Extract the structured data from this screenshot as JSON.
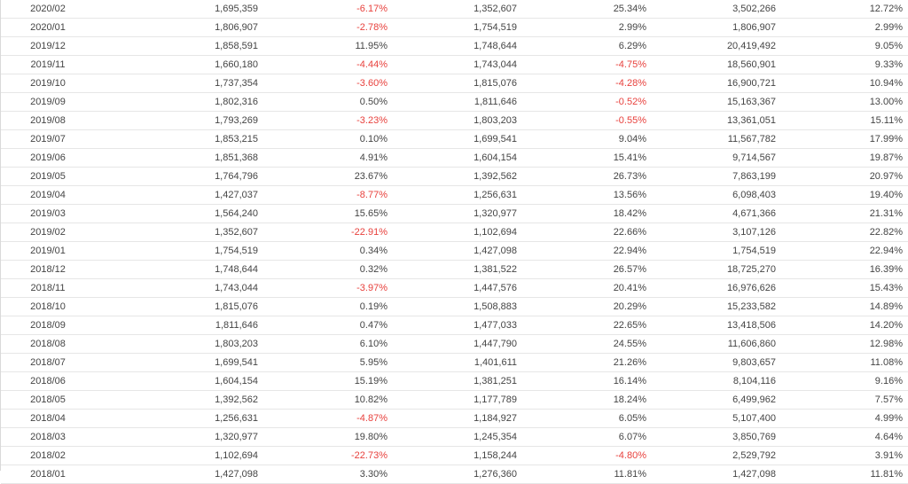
{
  "colors": {
    "negative": "#e8413d",
    "text": "#444444",
    "row_border": "#e6e6e6"
  },
  "rows": [
    [
      "2020/02",
      "1,695,359",
      "-6.17%",
      "1,352,607",
      "25.34%",
      "3,502,266",
      "12.72%"
    ],
    [
      "2020/01",
      "1,806,907",
      "-2.78%",
      "1,754,519",
      "2.99%",
      "1,806,907",
      "2.99%"
    ],
    [
      "2019/12",
      "1,858,591",
      "11.95%",
      "1,748,644",
      "6.29%",
      "20,419,492",
      "9.05%"
    ],
    [
      "2019/11",
      "1,660,180",
      "-4.44%",
      "1,743,044",
      "-4.75%",
      "18,560,901",
      "9.33%"
    ],
    [
      "2019/10",
      "1,737,354",
      "-3.60%",
      "1,815,076",
      "-4.28%",
      "16,900,721",
      "10.94%"
    ],
    [
      "2019/09",
      "1,802,316",
      "0.50%",
      "1,811,646",
      "-0.52%",
      "15,163,367",
      "13.00%"
    ],
    [
      "2019/08",
      "1,793,269",
      "-3.23%",
      "1,803,203",
      "-0.55%",
      "13,361,051",
      "15.11%"
    ],
    [
      "2019/07",
      "1,853,215",
      "0.10%",
      "1,699,541",
      "9.04%",
      "11,567,782",
      "17.99%"
    ],
    [
      "2019/06",
      "1,851,368",
      "4.91%",
      "1,604,154",
      "15.41%",
      "9,714,567",
      "19.87%"
    ],
    [
      "2019/05",
      "1,764,796",
      "23.67%",
      "1,392,562",
      "26.73%",
      "7,863,199",
      "20.97%"
    ],
    [
      "2019/04",
      "1,427,037",
      "-8.77%",
      "1,256,631",
      "13.56%",
      "6,098,403",
      "19.40%"
    ],
    [
      "2019/03",
      "1,564,240",
      "15.65%",
      "1,320,977",
      "18.42%",
      "4,671,366",
      "21.31%"
    ],
    [
      "2019/02",
      "1,352,607",
      "-22.91%",
      "1,102,694",
      "22.66%",
      "3,107,126",
      "22.82%"
    ],
    [
      "2019/01",
      "1,754,519",
      "0.34%",
      "1,427,098",
      "22.94%",
      "1,754,519",
      "22.94%"
    ],
    [
      "2018/12",
      "1,748,644",
      "0.32%",
      "1,381,522",
      "26.57%",
      "18,725,270",
      "16.39%"
    ],
    [
      "2018/11",
      "1,743,044",
      "-3.97%",
      "1,447,576",
      "20.41%",
      "16,976,626",
      "15.43%"
    ],
    [
      "2018/10",
      "1,815,076",
      "0.19%",
      "1,508,883",
      "20.29%",
      "15,233,582",
      "14.89%"
    ],
    [
      "2018/09",
      "1,811,646",
      "0.47%",
      "1,477,033",
      "22.65%",
      "13,418,506",
      "14.20%"
    ],
    [
      "2018/08",
      "1,803,203",
      "6.10%",
      "1,447,790",
      "24.55%",
      "11,606,860",
      "12.98%"
    ],
    [
      "2018/07",
      "1,699,541",
      "5.95%",
      "1,401,611",
      "21.26%",
      "9,803,657",
      "11.08%"
    ],
    [
      "2018/06",
      "1,604,154",
      "15.19%",
      "1,381,251",
      "16.14%",
      "8,104,116",
      "9.16%"
    ],
    [
      "2018/05",
      "1,392,562",
      "10.82%",
      "1,177,789",
      "18.24%",
      "6,499,962",
      "7.57%"
    ],
    [
      "2018/04",
      "1,256,631",
      "-4.87%",
      "1,184,927",
      "6.05%",
      "5,107,400",
      "4.99%"
    ],
    [
      "2018/03",
      "1,320,977",
      "19.80%",
      "1,245,354",
      "6.07%",
      "3,850,769",
      "4.64%"
    ],
    [
      "2018/02",
      "1,102,694",
      "-22.73%",
      "1,158,244",
      "-4.80%",
      "2,529,792",
      "3.91%"
    ],
    [
      "2018/01",
      "1,427,098",
      "3.30%",
      "1,276,360",
      "11.81%",
      "1,427,098",
      "11.81%"
    ]
  ]
}
